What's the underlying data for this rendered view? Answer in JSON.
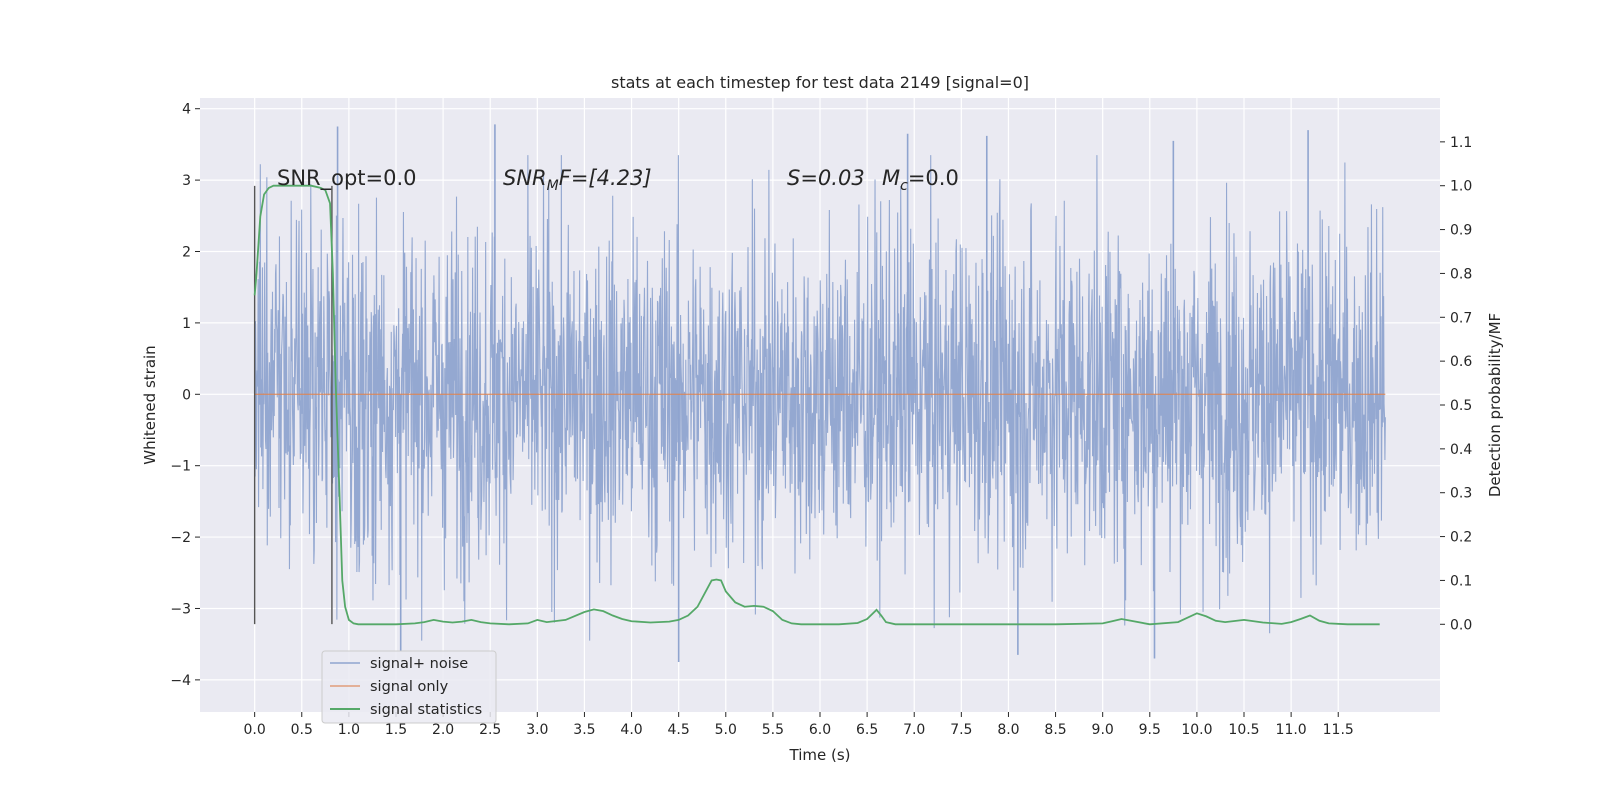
{
  "chart_data": {
    "type": "line",
    "title": "stats at each timestep for test data 2149 [signal=0]",
    "xlabel": "Time (s)",
    "ylabel": "Whitened strain",
    "ylabel_right": "Detection probability/MF",
    "xlim": [
      -0.58,
      12.58
    ],
    "ylim": [
      -4.45,
      4.15
    ],
    "ylim_right": [
      -0.2,
      1.2
    ],
    "x_ticks": [
      0.0,
      0.5,
      1.0,
      1.5,
      2.0,
      2.5,
      3.0,
      3.5,
      4.0,
      4.5,
      5.0,
      5.5,
      6.0,
      6.5,
      7.0,
      7.5,
      8.0,
      8.5,
      9.0,
      9.5,
      10.0,
      10.5,
      11.0,
      11.5
    ],
    "x_tick_labels": [
      "0.0",
      "0.5",
      "1.0",
      "1.5",
      "2.0",
      "2.5",
      "3.0",
      "3.5",
      "4.0",
      "4.5",
      "5.0",
      "5.5",
      "6.0",
      "6.5",
      "7.0",
      "7.5",
      "8.0",
      "8.5",
      "9.0",
      "9.5",
      "10.0",
      "10.5",
      "11.0",
      "11.5"
    ],
    "y_ticks": [
      -4,
      -3,
      -2,
      -1,
      0,
      1,
      2,
      3,
      4
    ],
    "y_tick_labels": [
      "−4",
      "−3",
      "−2",
      "−1",
      "0",
      "1",
      "2",
      "3",
      "4"
    ],
    "y_right_ticks": [
      0.0,
      0.1,
      0.2,
      0.3,
      0.4,
      0.5,
      0.6,
      0.7,
      0.8,
      0.9,
      1.0,
      1.1
    ],
    "y_right_tick_labels": [
      "0.0",
      "0.1",
      "0.2",
      "0.3",
      "0.4",
      "0.5",
      "0.6",
      "0.7",
      "0.8",
      "0.9",
      "1.0",
      "1.1"
    ],
    "grid": true,
    "legend_position": "bottom-left",
    "vertical_markers": [
      0.0,
      0.82
    ],
    "annotations": [
      {
        "label": "SNR_opt=0.0"
      },
      {
        "label": "SNR",
        "sub": "M",
        "tail": "F=[4.23]"
      },
      {
        "label": "S=0.03"
      },
      {
        "label": "M",
        "sub": "c",
        "tail": "=0.0"
      }
    ],
    "series": [
      {
        "name": "signal+ noise",
        "color": "#8fa4cf",
        "axis": "left",
        "x_range": [
          0.0,
          12.0
        ],
        "noise_peaks": [
          {
            "x": 0.88,
            "y": 3.75
          },
          {
            "x": 2.55,
            "y": 3.78
          },
          {
            "x": 6.93,
            "y": 3.65
          },
          {
            "x": 7.77,
            "y": 3.62
          },
          {
            "x": 9.75,
            "y": 3.55
          },
          {
            "x": 11.18,
            "y": 3.7
          },
          {
            "x": 1.55,
            "y": -3.6
          },
          {
            "x": 4.5,
            "y": -3.75
          },
          {
            "x": 8.1,
            "y": -3.65
          },
          {
            "x": 9.55,
            "y": -3.7
          }
        ],
        "note_y_spread": 1.3
      },
      {
        "name": "signal only",
        "color": "#dd8452",
        "axis": "left",
        "x": [
          0.0,
          12.0
        ],
        "y": [
          0.0,
          0.0
        ]
      },
      {
        "name": "signal statistics",
        "color": "#55a868",
        "axis": "right",
        "x": [
          0.0,
          0.02,
          0.06,
          0.1,
          0.15,
          0.2,
          0.3,
          0.4,
          0.5,
          0.6,
          0.7,
          0.75,
          0.8,
          0.83,
          0.86,
          0.9,
          0.93,
          0.96,
          1.0,
          1.05,
          1.1,
          1.2,
          1.5,
          1.7,
          1.8,
          1.9,
          2.0,
          2.1,
          2.2,
          2.3,
          2.4,
          2.5,
          2.7,
          2.9,
          3.0,
          3.1,
          3.3,
          3.5,
          3.6,
          3.7,
          3.8,
          3.9,
          4.0,
          4.2,
          4.4,
          4.5,
          4.6,
          4.7,
          4.8,
          4.85,
          4.9,
          4.95,
          5.0,
          5.1,
          5.2,
          5.3,
          5.4,
          5.5,
          5.6,
          5.7,
          5.8,
          6.0,
          6.2,
          6.4,
          6.5,
          6.6,
          6.65,
          6.7,
          6.8,
          7.0,
          7.5,
          8.0,
          8.5,
          9.0,
          9.1,
          9.2,
          9.3,
          9.5,
          9.8,
          9.9,
          10.0,
          10.1,
          10.2,
          10.3,
          10.5,
          10.7,
          10.9,
          11.0,
          11.1,
          11.2,
          11.3,
          11.4,
          11.6,
          11.94
        ],
        "y": [
          0.75,
          0.8,
          0.93,
          0.98,
          0.995,
          1.0,
          1.0,
          1.0,
          1.0,
          1.0,
          0.995,
          0.99,
          0.96,
          0.8,
          0.55,
          0.3,
          0.1,
          0.04,
          0.01,
          0.002,
          0.0,
          0.0,
          0.0,
          0.002,
          0.005,
          0.01,
          0.006,
          0.004,
          0.006,
          0.01,
          0.005,
          0.002,
          0.0,
          0.002,
          0.01,
          0.005,
          0.01,
          0.028,
          0.034,
          0.03,
          0.02,
          0.012,
          0.007,
          0.004,
          0.006,
          0.01,
          0.02,
          0.04,
          0.08,
          0.1,
          0.102,
          0.1,
          0.075,
          0.05,
          0.04,
          0.042,
          0.04,
          0.03,
          0.01,
          0.002,
          0.0,
          0.0,
          0.0,
          0.003,
          0.012,
          0.033,
          0.02,
          0.005,
          0.0,
          0.0,
          0.0,
          0.0,
          0.0,
          0.002,
          0.007,
          0.012,
          0.008,
          0.0,
          0.005,
          0.015,
          0.025,
          0.018,
          0.008,
          0.005,
          0.01,
          0.004,
          0.001,
          0.005,
          0.012,
          0.02,
          0.008,
          0.002,
          0.0,
          0.0
        ]
      }
    ]
  }
}
